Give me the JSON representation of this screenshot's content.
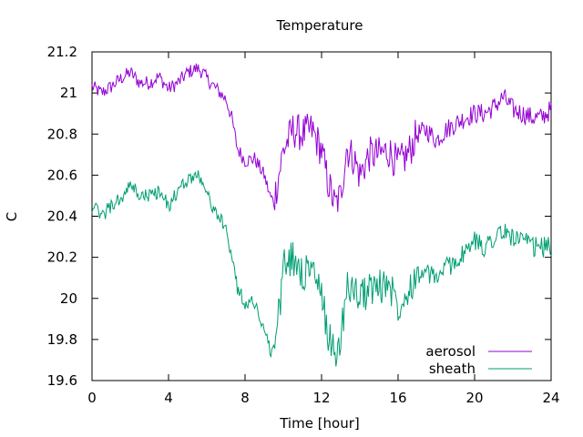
{
  "chart_data": {
    "type": "line",
    "title": "Temperature",
    "xlabel": "Time [hour]",
    "ylabel": "C",
    "xlim": [
      0,
      24
    ],
    "ylim": [
      19.6,
      21.2
    ],
    "x_ticks": [
      0,
      4,
      8,
      12,
      16,
      20,
      24
    ],
    "x_tick_labels": [
      "0",
      "4",
      "8",
      "12",
      "16",
      "20",
      "24"
    ],
    "y_ticks": [
      19.6,
      19.8,
      20,
      20.2,
      20.4,
      20.6,
      20.8,
      21,
      21.2
    ],
    "y_tick_labels": [
      "19.6",
      "19.8",
      "20",
      "20.2",
      "20.4",
      "20.6",
      "20.8",
      "21",
      "21.2"
    ],
    "grid": false,
    "legend_position": "bottom-right",
    "series": [
      {
        "name": "aerosol",
        "color": "#9400d3",
        "x": [
          0,
          0.5,
          1,
          1.5,
          2,
          2.5,
          3,
          3.5,
          4,
          4.5,
          5,
          5.5,
          5.8,
          6,
          6.5,
          7,
          7.3,
          7.6,
          8,
          8.5,
          9,
          9.3,
          9.5,
          9.8,
          10,
          10.5,
          11,
          11.5,
          12,
          12.3,
          12.7,
          13,
          13.3,
          13.7,
          14,
          14.5,
          15,
          15.5,
          16,
          16.5,
          17,
          17.5,
          18,
          18.5,
          19,
          19.5,
          20,
          20.5,
          21,
          21.5,
          22,
          22.5,
          23,
          23.5,
          24
        ],
        "values": [
          21.03,
          21.0,
          21.03,
          21.07,
          21.1,
          21.05,
          21.05,
          21.08,
          21.02,
          21.05,
          21.1,
          21.12,
          21.1,
          21.07,
          21.02,
          20.97,
          20.88,
          20.73,
          20.67,
          20.68,
          20.6,
          20.5,
          20.47,
          20.62,
          20.72,
          20.82,
          20.8,
          20.82,
          20.72,
          20.58,
          20.45,
          20.5,
          20.73,
          20.68,
          20.6,
          20.7,
          20.7,
          20.72,
          20.65,
          20.7,
          20.8,
          20.82,
          20.77,
          20.82,
          20.85,
          20.88,
          20.9,
          20.9,
          20.93,
          20.98,
          20.92,
          20.9,
          20.88,
          20.88,
          20.92
        ]
      },
      {
        "name": "sheath",
        "color": "#009e73",
        "x": [
          0,
          0.5,
          1,
          1.5,
          2,
          2.5,
          3,
          3.5,
          4,
          4.5,
          5,
          5.5,
          5.8,
          6,
          6.5,
          7,
          7.3,
          7.6,
          8,
          8.5,
          9,
          9.3,
          9.5,
          9.8,
          10,
          10.5,
          11,
          11.5,
          12,
          12.3,
          12.7,
          13,
          13.3,
          13.7,
          14,
          14.5,
          15,
          15.5,
          16,
          16.5,
          17,
          17.5,
          18,
          18.5,
          19,
          19.5,
          20,
          20.5,
          21,
          21.5,
          22,
          22.5,
          23,
          23.5,
          24
        ],
        "values": [
          20.45,
          20.4,
          20.45,
          20.48,
          20.55,
          20.5,
          20.5,
          20.52,
          20.45,
          20.52,
          20.58,
          20.6,
          20.58,
          20.5,
          20.42,
          20.33,
          20.22,
          20.05,
          19.98,
          19.98,
          19.85,
          19.75,
          19.75,
          19.95,
          20.15,
          20.2,
          20.12,
          20.15,
          20.0,
          19.85,
          19.72,
          19.8,
          20.05,
          20.05,
          20.0,
          20.05,
          20.05,
          20.08,
          19.97,
          20.05,
          20.12,
          20.12,
          20.1,
          20.15,
          20.18,
          20.22,
          20.28,
          20.25,
          20.3,
          20.32,
          20.3,
          20.28,
          20.25,
          20.25,
          20.25
        ]
      }
    ]
  }
}
